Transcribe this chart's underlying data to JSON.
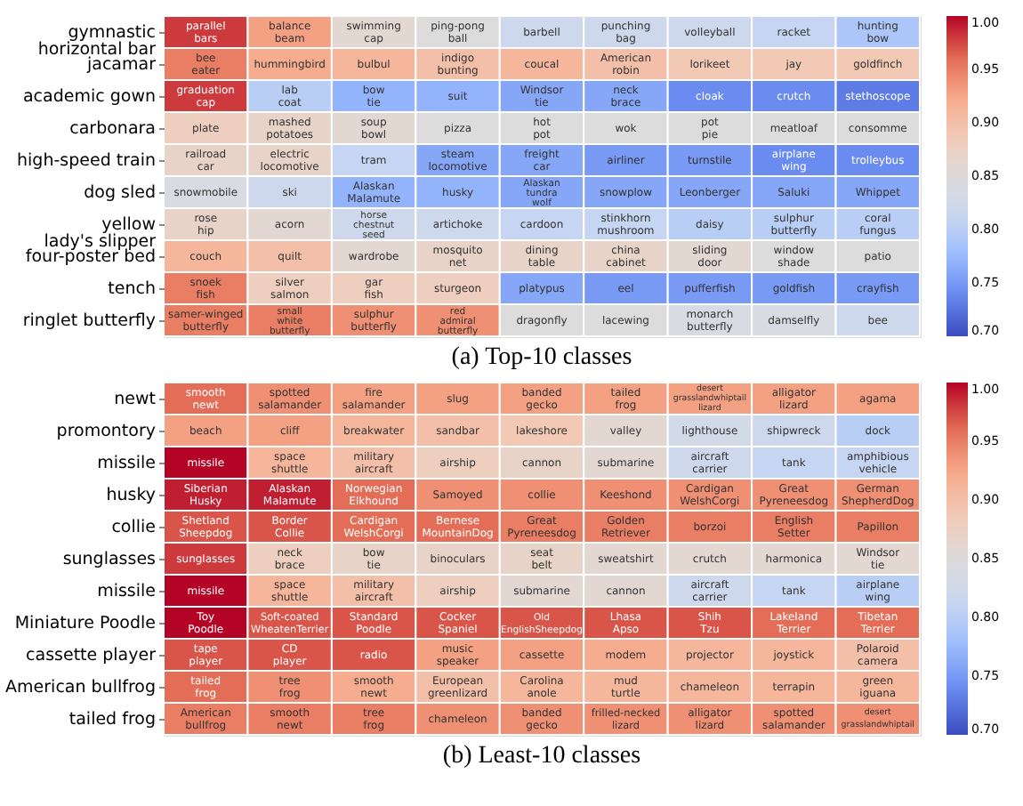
{
  "chart_data": [
    {
      "type": "heatmap",
      "title": "(a) Top-10 classes",
      "categories": [
        null,
        null,
        null,
        null,
        null,
        null,
        null,
        null,
        null
      ],
      "y_categories": [
        "gymnastic\nhorizontal bar",
        "jacamar",
        "academic gown",
        "carbonara",
        "high-speed train",
        "dog sled",
        "yellow\nlady's slipper",
        "four-poster bed",
        "tench",
        "ringlet butterfly"
      ],
      "cells": [
        [
          0.98,
          0.93,
          0.86,
          0.85,
          0.82,
          0.82,
          0.82,
          0.81,
          0.79
        ],
        [
          0.95,
          0.92,
          0.91,
          0.9,
          0.91,
          0.9,
          0.89,
          0.89,
          0.89
        ],
        [
          0.98,
          0.8,
          0.77,
          0.77,
          0.76,
          0.76,
          0.74,
          0.74,
          0.73
        ],
        [
          0.88,
          0.87,
          0.86,
          0.85,
          0.85,
          0.85,
          0.85,
          0.85,
          0.85
        ],
        [
          0.87,
          0.87,
          0.81,
          0.76,
          0.76,
          0.75,
          0.75,
          0.74,
          0.74
        ],
        [
          0.84,
          0.82,
          0.77,
          0.77,
          0.76,
          0.76,
          0.76,
          0.76,
          0.76
        ],
        [
          0.87,
          0.86,
          0.82,
          0.82,
          0.81,
          0.81,
          0.8,
          0.8,
          0.8
        ],
        [
          0.91,
          0.9,
          0.86,
          0.87,
          0.87,
          0.87,
          0.86,
          0.85,
          0.85
        ],
        [
          0.95,
          0.88,
          0.88,
          0.88,
          0.76,
          0.75,
          0.75,
          0.75,
          0.75
        ],
        [
          0.95,
          0.95,
          0.94,
          0.94,
          0.85,
          0.85,
          0.84,
          0.84,
          0.82
        ]
      ],
      "cell_labels": [
        [
          "parallel\nbars",
          "balance\nbeam",
          "swimming\ncap",
          "ping-pong\nball",
          "barbell",
          "punching\nbag",
          "volleyball",
          "racket",
          "hunting\nbow"
        ],
        [
          "bee\neater",
          "hummingbird",
          "bulbul",
          "indigo\nbunting",
          "coucal",
          "American\nrobin",
          "lorikeet",
          "jay",
          "goldfinch"
        ],
        [
          "graduation\ncap",
          "lab\ncoat",
          "bow\ntie",
          "suit",
          "Windsor\ntie",
          "neck\nbrace",
          "cloak",
          "crutch",
          "stethoscope"
        ],
        [
          "plate",
          "mashed\npotatoes",
          "soup\nbowl",
          "pizza",
          "hot\npot",
          "wok",
          "pot\npie",
          "meatloaf",
          "consomme"
        ],
        [
          "railroad\ncar",
          "electric\nlocomotive",
          "tram",
          "steam\nlocomotive",
          "freight\ncar",
          "airliner",
          "turnstile",
          "airplane\nwing",
          "trolleybus"
        ],
        [
          "snowmobile",
          "ski",
          "Alaskan\nMalamute",
          "husky",
          "Alaskan\ntundra\nwolf",
          "snowplow",
          "Leonberger",
          "Saluki",
          "Whippet"
        ],
        [
          "rose\nhip",
          "acorn",
          "horse\nchestnut\nseed",
          "artichoke",
          "cardoon",
          "stinkhorn\nmushroom",
          "daisy",
          "sulphur\nbutterfly",
          "coral\nfungus"
        ],
        [
          "couch",
          "quilt",
          "wardrobe",
          "mosquito\nnet",
          "dining\ntable",
          "china\ncabinet",
          "sliding\ndoor",
          "window\nshade",
          "patio"
        ],
        [
          "snoek\nfish",
          "silver\nsalmon",
          "gar\nfish",
          "sturgeon",
          "platypus",
          "eel",
          "pufferfish",
          "goldfish",
          "crayfish"
        ],
        [
          "samer-winged\nbutterfly",
          "small\nwhite\nbutterfly",
          "sulphur\nbutterfly",
          "red\nadmiral\nbutterfly",
          "dragonfly",
          "lacewing",
          "monarch\nbutterfly",
          "damselfly",
          "bee"
        ]
      ],
      "clim": [
        0.7,
        1.0
      ],
      "cticks": [
        {
          "value": 0.7,
          "label": "0.70"
        },
        {
          "value": 0.75,
          "label": "0.75"
        },
        {
          "value": 0.8,
          "label": "0.80"
        },
        {
          "value": 0.85,
          "label": "0.85"
        },
        {
          "value": 0.9,
          "label": "0.90"
        },
        {
          "value": 0.95,
          "label": "0.95"
        },
        {
          "value": 1.0,
          "label": "1.00"
        }
      ]
    },
    {
      "type": "heatmap",
      "title": "(b) Least-10 classes",
      "categories": [
        null,
        null,
        null,
        null,
        null,
        null,
        null,
        null,
        null
      ],
      "y_categories": [
        "newt",
        "promontory",
        "missile",
        "husky",
        "collie",
        "sunglasses",
        "missile",
        "Miniature Poodle",
        "cassette player",
        "American bullfrog",
        "tailed frog"
      ],
      "cells": [
        [
          0.96,
          0.94,
          0.93,
          0.93,
          0.93,
          0.93,
          0.93,
          0.93,
          0.93
        ],
        [
          0.93,
          0.93,
          0.91,
          0.9,
          0.89,
          0.86,
          0.83,
          0.82,
          0.8
        ],
        [
          1.0,
          0.91,
          0.9,
          0.88,
          0.87,
          0.86,
          0.82,
          0.81,
          0.81
        ],
        [
          0.99,
          0.99,
          0.96,
          0.94,
          0.94,
          0.94,
          0.94,
          0.94,
          0.94
        ],
        [
          0.97,
          0.97,
          0.96,
          0.96,
          0.95,
          0.95,
          0.95,
          0.95,
          0.95
        ],
        [
          0.98,
          0.88,
          0.87,
          0.87,
          0.87,
          0.86,
          0.86,
          0.86,
          0.86
        ],
        [
          1.0,
          0.91,
          0.9,
          0.88,
          0.86,
          0.86,
          0.82,
          0.81,
          0.8
        ],
        [
          1.0,
          0.97,
          0.97,
          0.97,
          0.97,
          0.97,
          0.97,
          0.96,
          0.96
        ],
        [
          0.97,
          0.97,
          0.97,
          0.93,
          0.93,
          0.92,
          0.91,
          0.91,
          0.9
        ],
        [
          0.96,
          0.94,
          0.92,
          0.9,
          0.91,
          0.91,
          0.91,
          0.91,
          0.91
        ],
        [
          0.95,
          0.95,
          0.95,
          0.94,
          0.94,
          0.94,
          0.94,
          0.94,
          0.94
        ]
      ],
      "cell_labels": [
        [
          "smooth\nnewt",
          "spotted\nsalamander",
          "fire\nsalamander",
          "slug",
          "banded\ngecko",
          "tailed\nfrog",
          "desert\ngrasslandwhiptail\nlizard",
          "alligator\nlizard",
          "agama"
        ],
        [
          "beach",
          "cliff",
          "breakwater",
          "sandbar",
          "lakeshore",
          "valley",
          "lighthouse",
          "shipwreck",
          "dock"
        ],
        [
          "missile",
          "space\nshuttle",
          "military\naircraft",
          "airship",
          "cannon",
          "submarine",
          "aircraft\ncarrier",
          "tank",
          "amphibious\nvehicle"
        ],
        [
          "Siberian\nHusky",
          "Alaskan\nMalamute",
          "Norwegian\nElkhound",
          "Samoyed",
          "collie",
          "Keeshond",
          "Cardigan\nWelshCorgi",
          "Great\nPyreneesdog",
          "German\nShepherdDog"
        ],
        [
          "Shetland\nSheepdog",
          "Border\nCollie",
          "Cardigan\nWelshCorgi",
          "Bernese\nMountainDog",
          "Great\nPyreneesdog",
          "Golden\nRetriever",
          "borzoi",
          "English\nSetter",
          "Papillon"
        ],
        [
          "sunglasses",
          "neck\nbrace",
          "bow\ntie",
          "binoculars",
          "seat\nbelt",
          "sweatshirt",
          "crutch",
          "harmonica",
          "Windsor\ntie"
        ],
        [
          "missile",
          "space\nshuttle",
          "military\naircraft",
          "airship",
          "submarine",
          "cannon",
          "aircraft\ncarrier",
          "tank",
          "airplane\nwing"
        ],
        [
          "Toy\nPoodle",
          "Soft-coated\nWheatenTerrier",
          "Standard\nPoodle",
          "Cocker\nSpaniel",
          "Old\nEnglishSheepdog",
          "Lhasa\nApso",
          "Shih\nTzu",
          "Lakeland\nTerrier",
          "Tibetan\nTerrier"
        ],
        [
          "tape\nplayer",
          "CD\nplayer",
          "radio",
          "music\nspeaker",
          "cassette",
          "modem",
          "projector",
          "joystick",
          "Polaroid\ncamera"
        ],
        [
          "tailed\nfrog",
          "tree\nfrog",
          "smooth\nnewt",
          "European\ngreenlizard",
          "Carolina\nanole",
          "mud\nturtle",
          "chameleon",
          "terrapin",
          "green\niguana"
        ],
        [
          "American\nbullfrog",
          "smooth\nnewt",
          "tree\nfrog",
          "chameleon",
          "banded\ngecko",
          "frilled-necked\nlizard",
          "alligator\nlizard",
          "spotted\nsalamander",
          "desert\ngrasslandwhiptail"
        ]
      ],
      "clim": [
        0.7,
        1.0
      ],
      "cticks": [
        {
          "value": 0.7,
          "label": "0.70"
        },
        {
          "value": 0.75,
          "label": "0.75"
        },
        {
          "value": 0.8,
          "label": "0.80"
        },
        {
          "value": 0.85,
          "label": "0.85"
        },
        {
          "value": 0.9,
          "label": "0.90"
        },
        {
          "value": 0.95,
          "label": "0.95"
        },
        {
          "value": 1.0,
          "label": "1.00"
        }
      ]
    }
  ]
}
